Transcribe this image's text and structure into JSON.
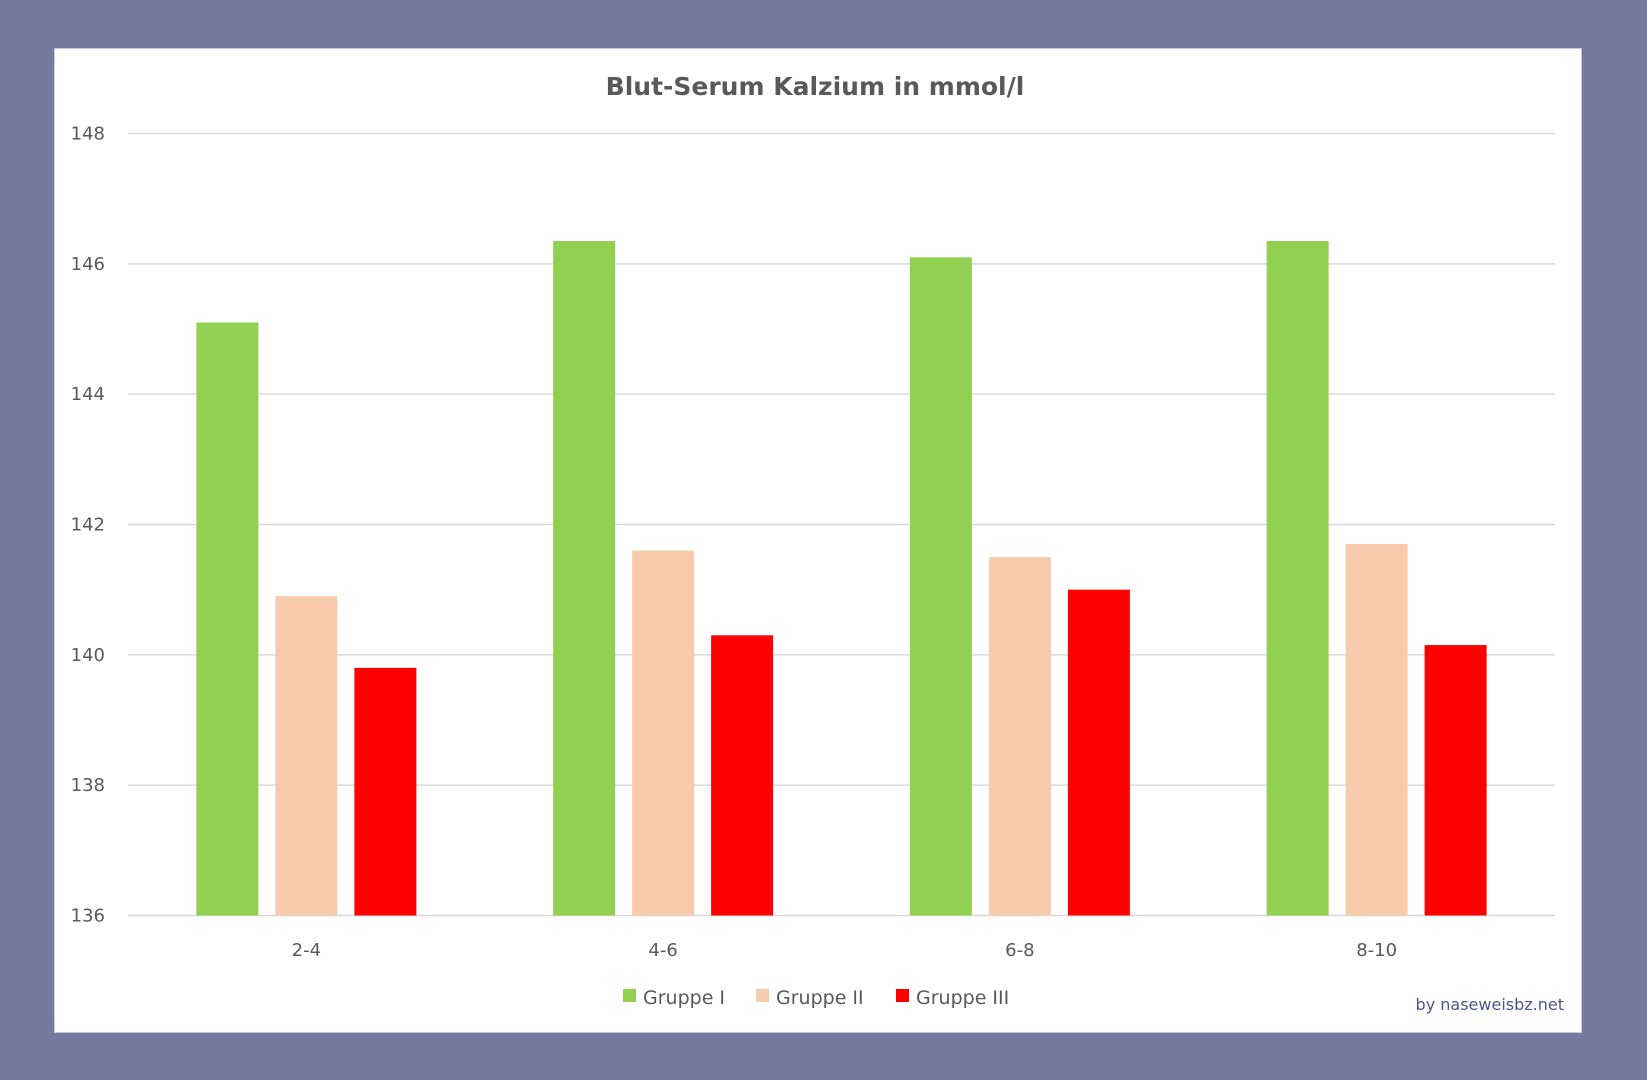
{
  "chart_data": {
    "type": "bar",
    "title": "Blut-Serum Kalzium in mmol/l",
    "xlabel": "",
    "ylabel": "",
    "categories": [
      "2-4",
      "4-6",
      "6-8",
      "8-10"
    ],
    "series": [
      {
        "name": "Gruppe I",
        "color": "#92D050",
        "values": [
          145.1,
          146.35,
          146.1,
          146.35
        ]
      },
      {
        "name": "Gruppe II",
        "color": "#F8CBAD",
        "values": [
          140.9,
          141.6,
          141.5,
          141.7
        ]
      },
      {
        "name": "Gruppe III",
        "color": "#FF0000",
        "values": [
          139.8,
          140.3,
          141.0,
          140.15
        ]
      }
    ],
    "ylim": [
      136,
      148
    ],
    "yticks": [
      "136",
      "138",
      "140",
      "142",
      "144",
      "146",
      "148"
    ],
    "grid": true,
    "legend": "bottom"
  },
  "watermark": "by naseweisbz.net",
  "colors": {
    "background": "#747BA0",
    "grid": "#D9D9D9"
  }
}
